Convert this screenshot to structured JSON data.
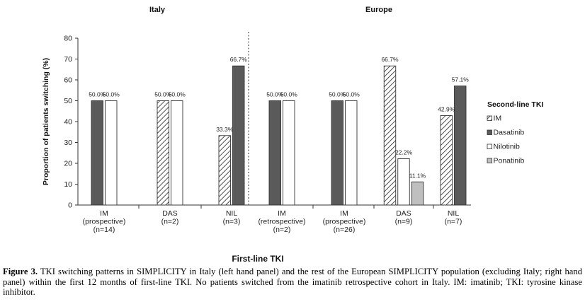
{
  "chart_data": {
    "type": "bar",
    "ylabel": "Proportion of patients switching (%)",
    "xlabel": "First-line TKI",
    "ylim": [
      0,
      80
    ],
    "yticks": [
      "0",
      "10",
      "20",
      "30",
      "40",
      "50",
      "60",
      "70",
      "80"
    ],
    "legend": {
      "title": "Second-line TKI",
      "placement": "right",
      "entries": [
        "IM",
        "Dasatinib",
        "Nilotinib",
        "Ponatinib"
      ]
    },
    "colors": {
      "IM": "#ffffff",
      "Dasatinib": "#5a5a5a",
      "Nilotinib": "#ffffff",
      "Ponatinib": "#bfbfbf",
      "stroke": "#333333"
    },
    "panels": [
      {
        "title": "Italy",
        "groups": [
          {
            "label": [
              "IM",
              "(prospective)",
              "(n=14)"
            ],
            "bars": [
              {
                "series": "Dasatinib",
                "value": 50.0,
                "label": "50.0%"
              },
              {
                "series": "Nilotinib",
                "value": 50.0,
                "label": "50.0%"
              }
            ]
          },
          {
            "label": [
              "DAS",
              "(n=2)"
            ],
            "bars": [
              {
                "series": "IM",
                "value": 50.0,
                "label": "50.0%"
              },
              {
                "series": "Nilotinib",
                "value": 50.0,
                "label": "50.0%"
              }
            ]
          },
          {
            "label": [
              "NIL",
              "(n=3)"
            ],
            "bars": [
              {
                "series": "IM",
                "value": 33.3,
                "label": "33.3%"
              },
              {
                "series": "Dasatinib",
                "value": 66.7,
                "label": "66.7%"
              }
            ]
          }
        ]
      },
      {
        "title": "Europe",
        "groups": [
          {
            "label": [
              "IM",
              "(retrospective)",
              "(n=2)"
            ],
            "bars": [
              {
                "series": "Dasatinib",
                "value": 50.0,
                "label": "50.0%"
              },
              {
                "series": "Nilotinib",
                "value": 50.0,
                "label": "50.0%"
              }
            ]
          },
          {
            "label": [
              "IM",
              "(prospective)",
              "(n=26)"
            ],
            "bars": [
              {
                "series": "Dasatinib",
                "value": 50.0,
                "label": "50.0%"
              },
              {
                "series": "Nilotinib",
                "value": 50.0,
                "label": "50.0%"
              }
            ]
          },
          {
            "label": [
              "DAS",
              "(n=9)"
            ],
            "bars": [
              {
                "series": "IM",
                "value": 66.7,
                "label": "66.7%"
              },
              {
                "series": "Nilotinib",
                "value": 22.2,
                "label": "22.2%"
              },
              {
                "series": "Ponatinib",
                "value": 11.1,
                "label": "11.1%"
              }
            ]
          },
          {
            "label": [
              "NIL",
              "(n=7)"
            ],
            "bars": [
              {
                "series": "IM",
                "value": 42.9,
                "label": "42.9%"
              },
              {
                "series": "Dasatinib",
                "value": 57.1,
                "label": "57.1%"
              }
            ]
          }
        ]
      }
    ]
  },
  "caption": {
    "figure_label": "Figure 3.",
    "text": "TKI switching patterns in SIMPLICITY in Italy (left hand panel) and the rest of the European SIMPLICITY population (excluding Italy; right hand panel) within the first 12 months of first-line TKI. No patients switched from the imatinib retrospective cohort in Italy. IM: imatinib; TKI: tyrosine kinase inhibitor."
  }
}
